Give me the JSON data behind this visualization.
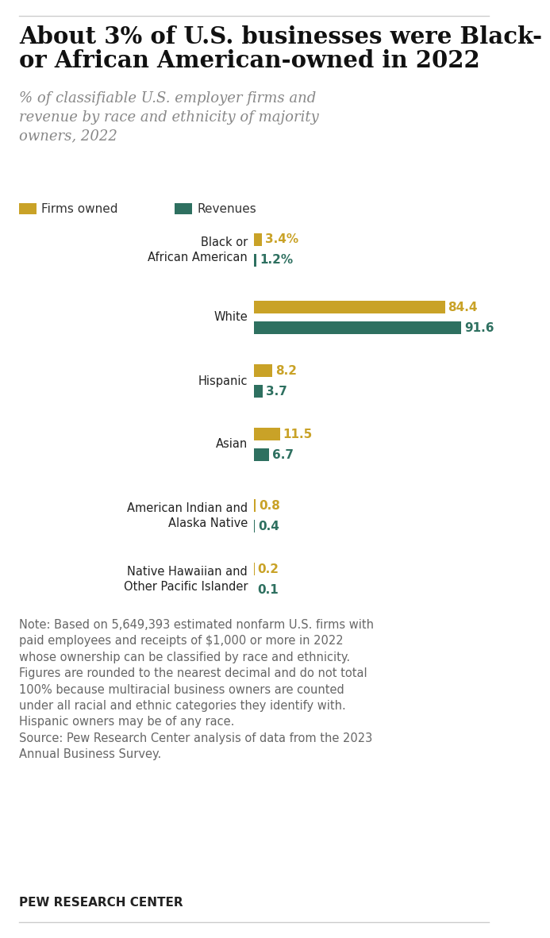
{
  "title_line1": "About 3% of U.S. businesses were Black-",
  "title_line2": "or African American-owned in 2022",
  "subtitle": "% of classifiable U.S. employer firms and\nrevenue by race and ethnicity of majority\nowners, 2022",
  "categories": [
    "Black or\nAfrican American",
    "White",
    "Hispanic",
    "Asian",
    "American Indian and\nAlaska Native",
    "Native Hawaiian and\nOther Pacific Islander"
  ],
  "firms_owned": [
    3.4,
    84.4,
    8.2,
    11.5,
    0.8,
    0.2
  ],
  "revenues": [
    1.2,
    91.6,
    3.7,
    6.7,
    0.4,
    0.1
  ],
  "value_labels_firms": [
    "3.4%",
    "84.4",
    "8.2",
    "11.5",
    "0.8",
    "0.2"
  ],
  "value_labels_rev": [
    "1.2%",
    "91.6",
    "3.7",
    "6.7",
    "0.4",
    "0.1"
  ],
  "firms_color": "#C9A227",
  "revenues_color": "#2E7060",
  "label_firms_color": "#C9A227",
  "label_revenues_color": "#2E7060",
  "background_color": "#FFFFFF",
  "title_fontsize": 21,
  "subtitle_fontsize": 13,
  "note_text": "Note: Based on 5,649,393 estimated nonfarm U.S. firms with\npaid employees and receipts of $1,000 or more in 2022\nwhose ownership can be classified by race and ethnicity.\nFigures are rounded to the nearest decimal and do not total\n100% because multiracial business owners are counted\nunder all racial and ethnic categories they identify with.\nHispanic owners may be of any race.\nSource: Pew Research Center analysis of data from the 2023\nAnnual Business Survey.",
  "footer_text": "PEW RESEARCH CENTER",
  "legend_firms": "Firms owned",
  "legend_revenues": "Revenues",
  "xlim_max": 100,
  "top_border_color": "#CCCCCC",
  "bottom_border_color": "#CCCCCC",
  "category_fontsize": 10.5,
  "label_fontsize": 11,
  "note_fontsize": 10.5,
  "footer_fontsize": 11
}
